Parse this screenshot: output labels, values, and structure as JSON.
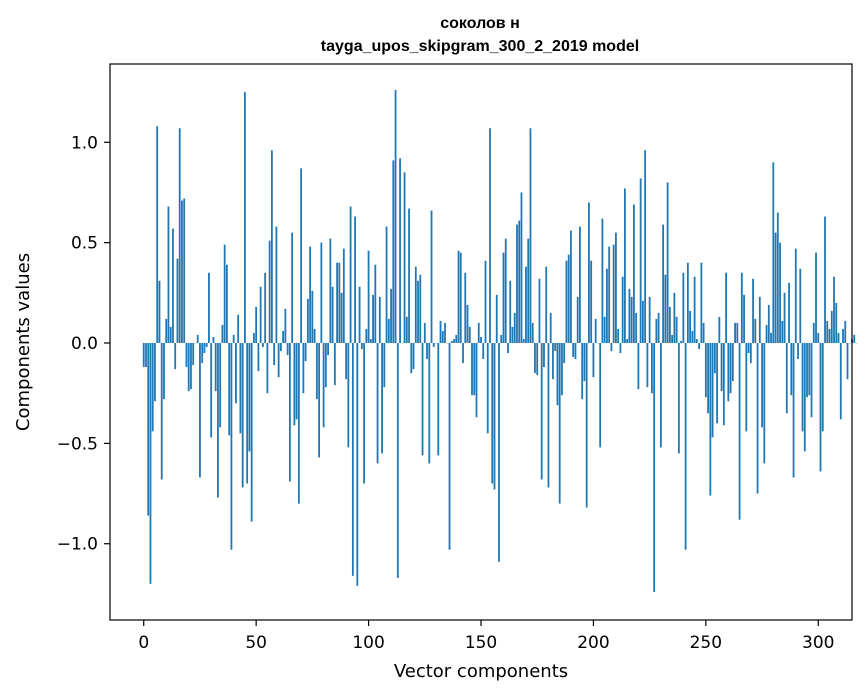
{
  "chart_data": {
    "type": "bar",
    "title": "соколов н",
    "subtitle": "tayga_upos_skipgram_300_2_2019 model",
    "xlabel": "Vector components",
    "ylabel": "Components values",
    "xlim": [
      -15,
      315
    ],
    "ylim": [
      -1.38,
      1.39
    ],
    "xticks": [
      0,
      50,
      100,
      150,
      200,
      250,
      300
    ],
    "xtick_labels": [
      "0",
      "50",
      "100",
      "150",
      "200",
      "250",
      "300"
    ],
    "yticks": [
      -1.0,
      -0.5,
      0.0,
      0.5,
      1.0
    ],
    "ytick_labels": [
      "−1.0",
      "−0.5",
      "0.0",
      "0.5",
      "1.0"
    ],
    "bar_color": "#1f77b4",
    "grid": false,
    "values": [
      -0.12,
      -0.12,
      -0.86,
      -1.2,
      -0.44,
      -0.29,
      1.08,
      0.31,
      -0.68,
      -0.28,
      0.12,
      0.68,
      0.08,
      0.57,
      -0.13,
      0.42,
      1.07,
      0.71,
      0.72,
      -0.12,
      -0.24,
      -0.23,
      -0.11,
      0.0,
      0.04,
      -0.67,
      -0.1,
      -0.05,
      -0.02,
      0.35,
      -0.47,
      0.03,
      -0.24,
      -0.77,
      -0.42,
      0.09,
      0.49,
      0.39,
      -0.46,
      -1.03,
      0.04,
      -0.3,
      0.14,
      -0.45,
      -0.72,
      1.25,
      -0.7,
      -0.54,
      -0.89,
      0.05,
      0.18,
      -0.14,
      0.28,
      -0.02,
      0.35,
      -0.25,
      0.51,
      0.96,
      -0.11,
      0.58,
      -0.17,
      -0.04,
      0.06,
      0.17,
      -0.06,
      -0.69,
      0.55,
      -0.41,
      -0.38,
      -0.8,
      0.87,
      -0.25,
      -0.09,
      0.22,
      0.48,
      0.26,
      0.07,
      -0.28,
      -0.57,
      0.5,
      -0.42,
      -0.22,
      -0.06,
      0.52,
      0.28,
      -0.21,
      0.4,
      0.4,
      0.25,
      0.47,
      -0.18,
      -0.52,
      0.68,
      -1.16,
      0.63,
      -1.21,
      0.28,
      -0.03,
      -0.7,
      0.07,
      0.46,
      0.02,
      0.24,
      0.39,
      -0.6,
      0.23,
      -0.55,
      -0.22,
      0.58,
      0.12,
      0.27,
      0.91,
      1.26,
      -1.17,
      0.92,
      0.0,
      0.85,
      0.13,
      0.67,
      -0.15,
      -0.13,
      0.38,
      0.31,
      0.34,
      -0.56,
      0.1,
      -0.08,
      -0.6,
      0.66,
      -0.02,
      0.0,
      -0.56,
      0.11,
      0.06,
      0.1,
      0.0,
      -1.03,
      0.01,
      0.02,
      0.04,
      0.46,
      0.45,
      -0.1,
      0.35,
      0.19,
      0.08,
      -0.26,
      -0.26,
      -0.37,
      0.1,
      0.03,
      -0.08,
      0.41,
      -0.45,
      1.07,
      -0.7,
      -0.73,
      0.24,
      -1.09,
      0.04,
      0.45,
      0.52,
      -0.05,
      0.31,
      0.08,
      0.15,
      0.59,
      0.61,
      0.75,
      0.02,
      0.38,
      0.52,
      1.07,
      0.1,
      -0.15,
      -0.16,
      0.32,
      -0.68,
      -0.12,
      0.38,
      -0.72,
      0.15,
      -0.18,
      -0.04,
      -0.31,
      -0.8,
      -0.26,
      -0.1,
      0.41,
      0.44,
      0.56,
      -0.07,
      -0.08,
      0.23,
      0.58,
      -0.28,
      -0.19,
      -0.82,
      0.7,
      0.41,
      -0.17,
      0.12,
      0.0,
      -0.52,
      0.62,
      0.13,
      0.37,
      0.48,
      -0.04,
      0.49,
      0.55,
      0.07,
      -0.05,
      0.33,
      0.77,
      0.02,
      0.27,
      0.23,
      0.69,
      0.15,
      -0.23,
      0.82,
      0.21,
      0.96,
      -0.22,
      0.23,
      -0.25,
      -1.24,
      0.12,
      0.15,
      -0.52,
      0.59,
      0.34,
      0.8,
      0.18,
      0.04,
      0.25,
      0.13,
      -0.55,
      0.01,
      0.35,
      -1.03,
      0.4,
      0.16,
      0.06,
      0.33,
      0.02,
      -0.03,
      0.4,
      0.1,
      -0.27,
      -0.35,
      -0.76,
      -0.47,
      -0.15,
      -0.4,
      0.13,
      -0.24,
      -0.41,
      0.35,
      -0.29,
      -0.25,
      -0.19,
      0.1,
      0.1,
      -0.88,
      0.35,
      0.24,
      -0.44,
      -0.05,
      -0.1,
      0.32,
      0.12,
      -0.75,
      0.23,
      -0.42,
      -0.6,
      0.09,
      0.19,
      0.05,
      0.9,
      0.55,
      0.65,
      0.5,
      0.11,
      0.25,
      -0.35,
      0.3,
      -0.26,
      -0.67,
      0.47,
      -0.08,
      0.37,
      -0.44,
      -0.54,
      -0.27,
      -0.26,
      -0.37,
      0.1,
      0.45,
      0.05,
      -0.64,
      -0.44,
      0.63,
      0.11,
      0.07,
      0.16,
      0.33,
      0.2,
      0.05,
      -0.38,
      0.07,
      0.11,
      -0.18,
      0.0,
      0.02,
      0.04,
      0.0
    ]
  }
}
